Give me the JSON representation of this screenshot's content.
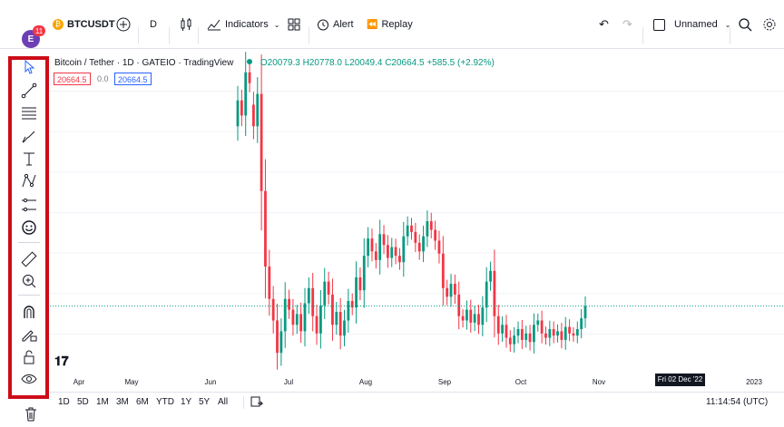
{
  "topbar": {
    "avatar_letter": "E",
    "notification_count": "11",
    "symbol": "BTCUSDT",
    "interval": "D",
    "indicators_label": "Indicators",
    "alert_label": "Alert",
    "replay_label": "Replay",
    "layout_name": "Unnamed"
  },
  "legend": {
    "title": "Bitcoin / Tether · 1D · GATEIO · TradingView",
    "ohlc": "O20079.3 H20778.0 L20049.4 C20664.5 +585.5 (+2.92%)"
  },
  "price_boxes": {
    "bid": "20664.5",
    "spread": "0.0",
    "ask": "20664.5"
  },
  "x_axis": {
    "labels": [
      "Apr",
      "May",
      "Jun",
      "Jul",
      "Aug",
      "Sep",
      "Oct",
      "Nov",
      "2023"
    ],
    "crosshair_date": "Fri 02 Dec '22"
  },
  "bottombar": {
    "ranges": [
      "1D",
      "5D",
      "1M",
      "3M",
      "6M",
      "YTD",
      "1Y",
      "5Y",
      "All"
    ],
    "clock": "11:14:54 (UTC)"
  },
  "colors": {
    "up": "#089981",
    "down": "#f23645",
    "highlight": "#cc0d18"
  },
  "chart_data": {
    "type": "candlestick",
    "symbol": "BTCUSDT",
    "interval": "1D",
    "last_close": 20664.5,
    "series": [
      {
        "o": 29000,
        "c": 30200
      },
      {
        "o": 30200,
        "c": 29500
      },
      {
        "o": 29500,
        "c": 31500
      },
      {
        "o": 31500,
        "c": 31000
      },
      {
        "o": 30000,
        "c": 29000
      },
      {
        "o": 29000,
        "c": 30500
      },
      {
        "o": 30500,
        "c": 26000
      },
      {
        "o": 26000,
        "c": 22500
      },
      {
        "o": 22500,
        "c": 21000
      },
      {
        "o": 21000,
        "c": 20000
      },
      {
        "o": 20000,
        "c": 18500
      },
      {
        "o": 18500,
        "c": 19500
      },
      {
        "o": 19500,
        "c": 21000
      },
      {
        "o": 21000,
        "c": 20500
      },
      {
        "o": 20500,
        "c": 19800
      },
      {
        "o": 19800,
        "c": 20300
      },
      {
        "o": 20300,
        "c": 19500
      },
      {
        "o": 19500,
        "c": 20800
      },
      {
        "o": 20800,
        "c": 21500
      },
      {
        "o": 21500,
        "c": 20200
      },
      {
        "o": 20200,
        "c": 19400
      },
      {
        "o": 19400,
        "c": 20700
      },
      {
        "o": 20700,
        "c": 21800
      },
      {
        "o": 21800,
        "c": 21200
      },
      {
        "o": 21200,
        "c": 19800
      },
      {
        "o": 19800,
        "c": 20400
      },
      {
        "o": 20400,
        "c": 19300
      },
      {
        "o": 19300,
        "c": 20000
      },
      {
        "o": 20000,
        "c": 20900
      },
      {
        "o": 20900,
        "c": 20600
      },
      {
        "o": 20600,
        "c": 22000
      },
      {
        "o": 22000,
        "c": 21400
      },
      {
        "o": 21400,
        "c": 23000
      },
      {
        "o": 23000,
        "c": 23800
      },
      {
        "o": 23800,
        "c": 23200
      },
      {
        "o": 23200,
        "c": 22800
      },
      {
        "o": 22800,
        "c": 24000
      },
      {
        "o": 24000,
        "c": 23500
      },
      {
        "o": 23500,
        "c": 22900
      },
      {
        "o": 22900,
        "c": 23400
      },
      {
        "o": 23400,
        "c": 23000
      },
      {
        "o": 23000,
        "c": 22700
      },
      {
        "o": 22700,
        "c": 23900
      },
      {
        "o": 23900,
        "c": 24400
      },
      {
        "o": 24400,
        "c": 24100
      },
      {
        "o": 24100,
        "c": 23600
      },
      {
        "o": 23600,
        "c": 23200
      },
      {
        "o": 23200,
        "c": 23900
      },
      {
        "o": 23900,
        "c": 24600
      },
      {
        "o": 24600,
        "c": 24200
      },
      {
        "o": 24200,
        "c": 23700
      },
      {
        "o": 23700,
        "c": 23100
      },
      {
        "o": 23100,
        "c": 21500
      },
      {
        "o": 21500,
        "c": 21100
      },
      {
        "o": 21100,
        "c": 21700
      },
      {
        "o": 21700,
        "c": 21200
      },
      {
        "o": 21200,
        "c": 20200
      },
      {
        "o": 20200,
        "c": 20000
      },
      {
        "o": 20000,
        "c": 20500
      },
      {
        "o": 20500,
        "c": 19900
      },
      {
        "o": 19900,
        "c": 20300
      },
      {
        "o": 20300,
        "c": 19800
      },
      {
        "o": 19800,
        "c": 20600
      },
      {
        "o": 20600,
        "c": 21800
      },
      {
        "o": 21800,
        "c": 22300
      },
      {
        "o": 22300,
        "c": 20200
      },
      {
        "o": 20200,
        "c": 19400
      },
      {
        "o": 19400,
        "c": 19800
      },
      {
        "o": 19800,
        "c": 19200
      },
      {
        "o": 19200,
        "c": 18900
      },
      {
        "o": 18900,
        "c": 19300
      },
      {
        "o": 19300,
        "c": 19600
      },
      {
        "o": 19600,
        "c": 19100
      },
      {
        "o": 19100,
        "c": 19400
      },
      {
        "o": 19400,
        "c": 19000
      },
      {
        "o": 19000,
        "c": 19800
      },
      {
        "o": 19800,
        "c": 20000
      },
      {
        "o": 20000,
        "c": 19400
      },
      {
        "o": 19400,
        "c": 19200
      },
      {
        "o": 19200,
        "c": 19600
      },
      {
        "o": 19600,
        "c": 19300
      },
      {
        "o": 19300,
        "c": 19500
      },
      {
        "o": 19500,
        "c": 19100
      },
      {
        "o": 19100,
        "c": 19700
      },
      {
        "o": 19700,
        "c": 19400
      },
      {
        "o": 19400,
        "c": 19300
      },
      {
        "o": 19300,
        "c": 19600
      },
      {
        "o": 19600,
        "c": 20100
      },
      {
        "o": 20100,
        "c": 20664.5
      }
    ],
    "ylim": [
      17500,
      32500
    ]
  }
}
